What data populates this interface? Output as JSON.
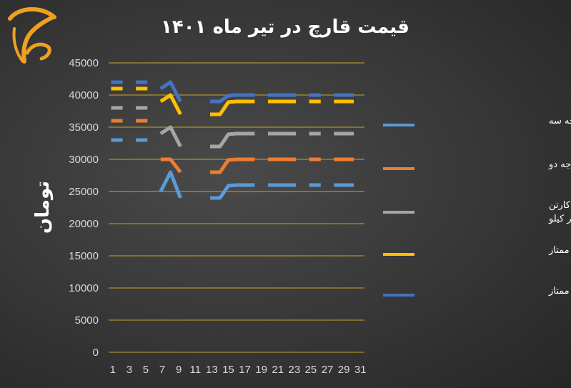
{
  "colors": {
    "background": "#3a3a3a",
    "gridline": "#c8a528",
    "logo": "#f0a020"
  },
  "logo": {
    "icon": "stylized-mushroom-logo-icon"
  },
  "chart_data": {
    "type": "line",
    "title": "قیمت قارچ در تیر ماه ۱۴۰۱",
    "xlabel": "",
    "ylabel": "تومان",
    "ylim": [
      0,
      45000
    ],
    "yticks": [
      "0",
      "5000",
      "10000",
      "15000",
      "20000",
      "25000",
      "30000",
      "35000",
      "40000",
      "45000"
    ],
    "xlim": [
      1,
      31
    ],
    "xticks": [
      "1",
      "3",
      "5",
      "7",
      "9",
      "11",
      "13",
      "15",
      "17",
      "19",
      "21",
      "23",
      "25",
      "27",
      "29",
      "31"
    ],
    "grid": true,
    "legend_position": "right",
    "x": [
      1,
      2,
      3,
      4,
      5,
      6,
      7,
      8,
      9,
      10,
      11,
      12,
      13,
      14,
      15,
      16,
      17,
      18,
      19,
      20,
      21,
      22,
      23,
      24,
      25,
      26,
      27,
      28,
      29,
      30,
      31
    ],
    "series": [
      {
        "name": "قارچ فله درجه سه",
        "color": "#5b9bd5",
        "values": [
          33000,
          33000,
          null,
          33000,
          33000,
          null,
          25000,
          28000,
          24000,
          null,
          null,
          null,
          24000,
          24000,
          25900,
          26000,
          26000,
          26000,
          null,
          26000,
          26000,
          26000,
          26000,
          null,
          26000,
          26000,
          null,
          26000,
          26000,
          26000,
          null
        ]
      },
      {
        "name": "قارچ فله درجه دو",
        "color": "#ed7d31",
        "values": [
          36000,
          36000,
          null,
          36000,
          36000,
          null,
          30000,
          30000,
          28000,
          null,
          null,
          null,
          28000,
          28000,
          29900,
          30000,
          30000,
          30000,
          null,
          30000,
          30000,
          30000,
          30000,
          null,
          30000,
          30000,
          null,
          30000,
          30000,
          30000,
          null
        ]
      },
      {
        "name": "قارچ فله درسبد و کیسه و کارتن (کیفیت متوسط) هر کیلو",
        "color": "#a5a5a5",
        "values": [
          38000,
          38000,
          null,
          38000,
          38000,
          null,
          34000,
          35000,
          32000,
          null,
          null,
          null,
          32000,
          32000,
          33900,
          34000,
          34000,
          34000,
          null,
          34000,
          34000,
          34000,
          34000,
          null,
          34000,
          34000,
          null,
          34000,
          34000,
          34000,
          null
        ]
      },
      {
        "name": "قارچ فله درجه یک کیسه ممتاز",
        "color": "#ffc000",
        "values": [
          41000,
          41000,
          null,
          41000,
          41000,
          null,
          39000,
          40000,
          37000,
          null,
          null,
          null,
          37000,
          37000,
          38900,
          39000,
          39000,
          39000,
          null,
          39000,
          39000,
          39000,
          39000,
          null,
          39000,
          39000,
          null,
          39000,
          39000,
          39000,
          null
        ]
      },
      {
        "name": "قارچ فله درجه یک سبد ممتاز",
        "color": "#4472c4",
        "values": [
          42000,
          42000,
          null,
          42000,
          42000,
          null,
          41000,
          42000,
          39000,
          null,
          null,
          null,
          39000,
          39000,
          39900,
          40000,
          40000,
          40000,
          null,
          40000,
          40000,
          40000,
          40000,
          null,
          40000,
          40000,
          null,
          40000,
          40000,
          40000,
          null
        ]
      }
    ]
  }
}
